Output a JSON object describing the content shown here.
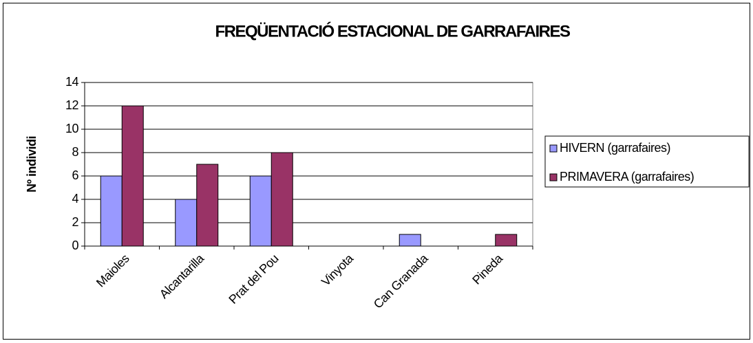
{
  "chart_data": {
    "type": "bar",
    "title": "FREQÜENTACIÓ ESTACIONAL DE GARRAFAIRES",
    "y_label": "Nº individi",
    "categories": [
      "Maioles",
      "Alcantarilla",
      "Prat del Pou",
      "Vinyota",
      "Can Granada",
      "Pineda"
    ],
    "series": [
      {
        "name": "HIVERN (garrafaires)",
        "color": "#9999ff",
        "values": [
          6,
          4,
          6,
          0,
          1,
          0
        ]
      },
      {
        "name": "PRIMAVERA (garrafaires)",
        "color": "#993366",
        "values": [
          12,
          7,
          8,
          0,
          0,
          1
        ]
      }
    ],
    "ylim": [
      0,
      14
    ],
    "yticks": [
      0,
      2,
      4,
      6,
      8,
      10,
      12,
      14
    ],
    "grid": true,
    "legend": "right"
  }
}
